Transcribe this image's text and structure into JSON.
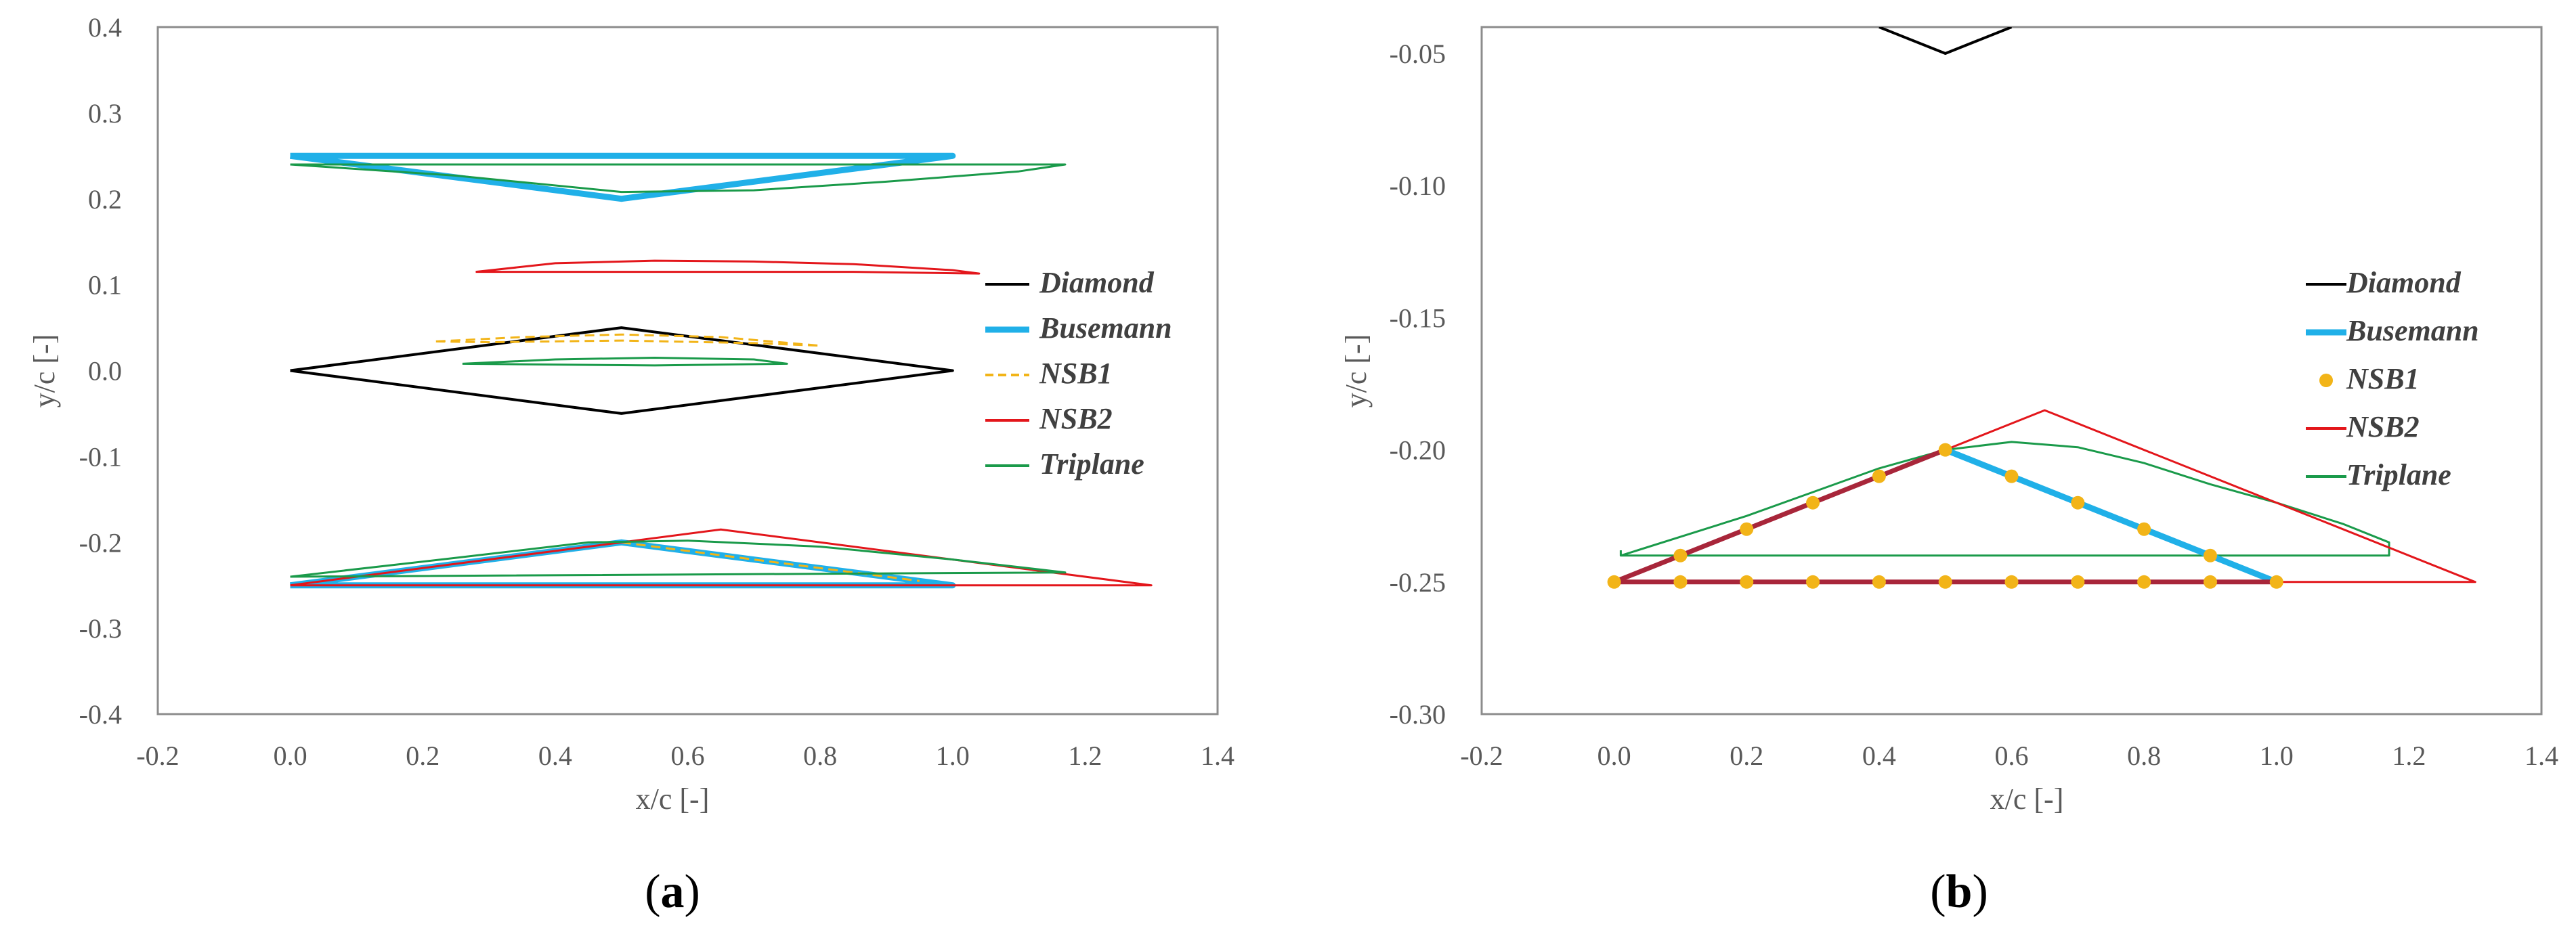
{
  "colors": {
    "Diamond": "#000000",
    "Busemann": "#20B0E8",
    "NSB1": "#F2B418",
    "NSB2": "#E3161B",
    "Triplane": "#1A9A4A",
    "overlap": "#A8263A"
  },
  "chart_data": [
    {
      "type": "line",
      "panel": "a",
      "panel_label": "a",
      "xlabel": "x/c [-]",
      "ylabel": "y/c [-]",
      "xlim": [
        -0.2,
        1.4
      ],
      "ylim": [
        -0.4,
        0.4
      ],
      "xticks": [
        "-0.2",
        "0.0",
        "0.2",
        "0.4",
        "0.6",
        "0.8",
        "1.0",
        "1.2",
        "1.4"
      ],
      "yticks": [
        "0.4",
        "0.3",
        "0.2",
        "0.1",
        "0.0",
        "-0.1",
        "-0.2",
        "-0.3",
        "-0.4"
      ],
      "legend": [
        "Diamond",
        "Busemann",
        "NSB1",
        "NSB2",
        "Triplane"
      ],
      "series": [
        {
          "name": "Diamond",
          "style": "solid",
          "points": [
            [
              0,
              0
            ],
            [
              0.5,
              0.05
            ],
            [
              1.0,
              0
            ],
            [
              0.5,
              -0.05
            ],
            [
              0,
              0
            ]
          ]
        },
        {
          "name": "Busemann",
          "style": "solid",
          "points": [
            [
              0,
              0.25
            ],
            [
              0.5,
              0.2
            ],
            [
              1.0,
              0.25
            ],
            [
              0,
              0.25
            ]
          ]
        },
        {
          "name": "Busemann",
          "style": "solid",
          "points": [
            [
              0,
              -0.25
            ],
            [
              0.5,
              -0.2
            ],
            [
              1.0,
              -0.25
            ],
            [
              0,
              -0.25
            ]
          ]
        },
        {
          "name": "NSB1",
          "style": "dashed",
          "points": [
            [
              0.22,
              0.034
            ],
            [
              0.35,
              0.039
            ],
            [
              0.5,
              0.042
            ],
            [
              0.65,
              0.039
            ],
            [
              0.8,
              0.029
            ],
            [
              0.7,
              0.032
            ],
            [
              0.5,
              0.035
            ],
            [
              0.3,
              0.033
            ],
            [
              0.22,
              0.034
            ]
          ]
        },
        {
          "name": "NSB1",
          "style": "dashed",
          "points": [
            [
              0.5,
              -0.2
            ],
            [
              0.95,
              -0.245
            ]
          ]
        },
        {
          "name": "NSB2",
          "style": "solid",
          "points": [
            [
              0.28,
              0.115
            ],
            [
              0.4,
              0.125
            ],
            [
              0.55,
              0.128
            ],
            [
              0.7,
              0.127
            ],
            [
              0.85,
              0.124
            ],
            [
              1.0,
              0.117
            ],
            [
              1.04,
              0.113
            ],
            [
              0.85,
              0.115
            ],
            [
              0.6,
              0.115
            ],
            [
              0.28,
              0.115
            ]
          ]
        },
        {
          "name": "NSB2",
          "style": "solid",
          "points": [
            [
              0,
              -0.25
            ],
            [
              0.65,
              -0.185
            ],
            [
              1.3,
              -0.25
            ],
            [
              0,
              -0.25
            ]
          ]
        },
        {
          "name": "Triplane",
          "style": "solid",
          "points": [
            [
              0,
              0.24
            ],
            [
              0.25,
              0.227
            ],
            [
              0.5,
              0.208
            ],
            [
              0.7,
              0.21
            ],
            [
              0.9,
              0.22
            ],
            [
              1.1,
              0.232
            ],
            [
              1.17,
              0.24
            ],
            [
              0,
              0.24
            ]
          ]
        },
        {
          "name": "Triplane",
          "style": "solid",
          "points": [
            [
              0.26,
              0.008
            ],
            [
              0.4,
              0.013
            ],
            [
              0.55,
              0.015
            ],
            [
              0.7,
              0.013
            ],
            [
              0.75,
              0.008
            ],
            [
              0.55,
              0.006
            ],
            [
              0.26,
              0.008
            ]
          ]
        },
        {
          "name": "Triplane",
          "style": "solid",
          "points": [
            [
              0,
              -0.24
            ],
            [
              0.25,
              -0.218
            ],
            [
              0.45,
              -0.2
            ],
            [
              0.6,
              -0.198
            ],
            [
              0.8,
              -0.205
            ],
            [
              1.0,
              -0.22
            ],
            [
              1.17,
              -0.235
            ],
            [
              0,
              -0.24
            ]
          ]
        }
      ]
    },
    {
      "type": "line",
      "panel": "b",
      "panel_label": "b",
      "xlabel": "x/c [-]",
      "ylabel": "y/c [-]",
      "xlim": [
        -0.2,
        1.4
      ],
      "ylim": [
        -0.3,
        -0.04
      ],
      "xticks": [
        "-0.2",
        "0.0",
        "0.2",
        "0.4",
        "0.6",
        "0.8",
        "1.0",
        "1.2",
        "1.4"
      ],
      "yticks": [
        "-0.05",
        "-0.10",
        "-0.15",
        "-0.20",
        "-0.25",
        "-0.30"
      ],
      "ytick_values": [
        -0.05,
        -0.1,
        -0.15,
        -0.2,
        -0.25,
        -0.3
      ],
      "legend": [
        "Diamond",
        "Busemann",
        "NSB1",
        "NSB2",
        "Triplane"
      ],
      "series": [
        {
          "name": "Diamond",
          "style": "solid",
          "points": [
            [
              0.4,
              -0.04
            ],
            [
              0.5,
              -0.05
            ],
            [
              0.6,
              -0.04
            ]
          ]
        },
        {
          "name": "Triplane",
          "style": "solid",
          "points": [
            [
              0.01,
              -0.24
            ],
            [
              0.2,
              -0.225
            ],
            [
              0.4,
              -0.207
            ],
            [
              0.5,
              -0.2
            ],
            [
              0.6,
              -0.197
            ],
            [
              0.7,
              -0.199
            ],
            [
              0.8,
              -0.205
            ],
            [
              0.9,
              -0.213
            ],
            [
              1.0,
              -0.22
            ],
            [
              1.1,
              -0.228
            ],
            [
              1.17,
              -0.235
            ],
            [
              1.17,
              -0.24
            ],
            [
              0.01,
              -0.24
            ],
            [
              0.01,
              -0.238
            ]
          ]
        },
        {
          "name": "NSB2",
          "style": "solid",
          "points": [
            [
              0,
              -0.25
            ],
            [
              0.65,
              -0.185
            ],
            [
              1.3,
              -0.25
            ],
            [
              0,
              -0.25
            ]
          ]
        },
        {
          "name": "Busemann",
          "style": "solid",
          "points": [
            [
              0.5,
              -0.2
            ],
            [
              1.0,
              -0.25
            ]
          ]
        },
        {
          "name": "overlap",
          "style": "solid",
          "points": [
            [
              0,
              -0.25
            ],
            [
              0.5,
              -0.2
            ]
          ]
        },
        {
          "name": "overlap",
          "style": "solid",
          "points": [
            [
              0,
              -0.25
            ],
            [
              1.0,
              -0.25
            ]
          ]
        },
        {
          "name": "NSB1",
          "style": "markers",
          "points": [
            [
              0,
              -0.25
            ],
            [
              0.1,
              -0.25
            ],
            [
              0.2,
              -0.25
            ],
            [
              0.3,
              -0.25
            ],
            [
              0.4,
              -0.25
            ],
            [
              0.5,
              -0.25
            ],
            [
              0.6,
              -0.25
            ],
            [
              0.7,
              -0.25
            ],
            [
              0.8,
              -0.25
            ],
            [
              0.9,
              -0.25
            ],
            [
              1.0,
              -0.25
            ],
            [
              0.1,
              -0.24
            ],
            [
              0.2,
              -0.23
            ],
            [
              0.3,
              -0.22
            ],
            [
              0.4,
              -0.21
            ],
            [
              0.5,
              -0.2
            ],
            [
              0.6,
              -0.21
            ],
            [
              0.7,
              -0.22
            ],
            [
              0.8,
              -0.23
            ],
            [
              0.9,
              -0.24
            ]
          ]
        }
      ]
    }
  ]
}
